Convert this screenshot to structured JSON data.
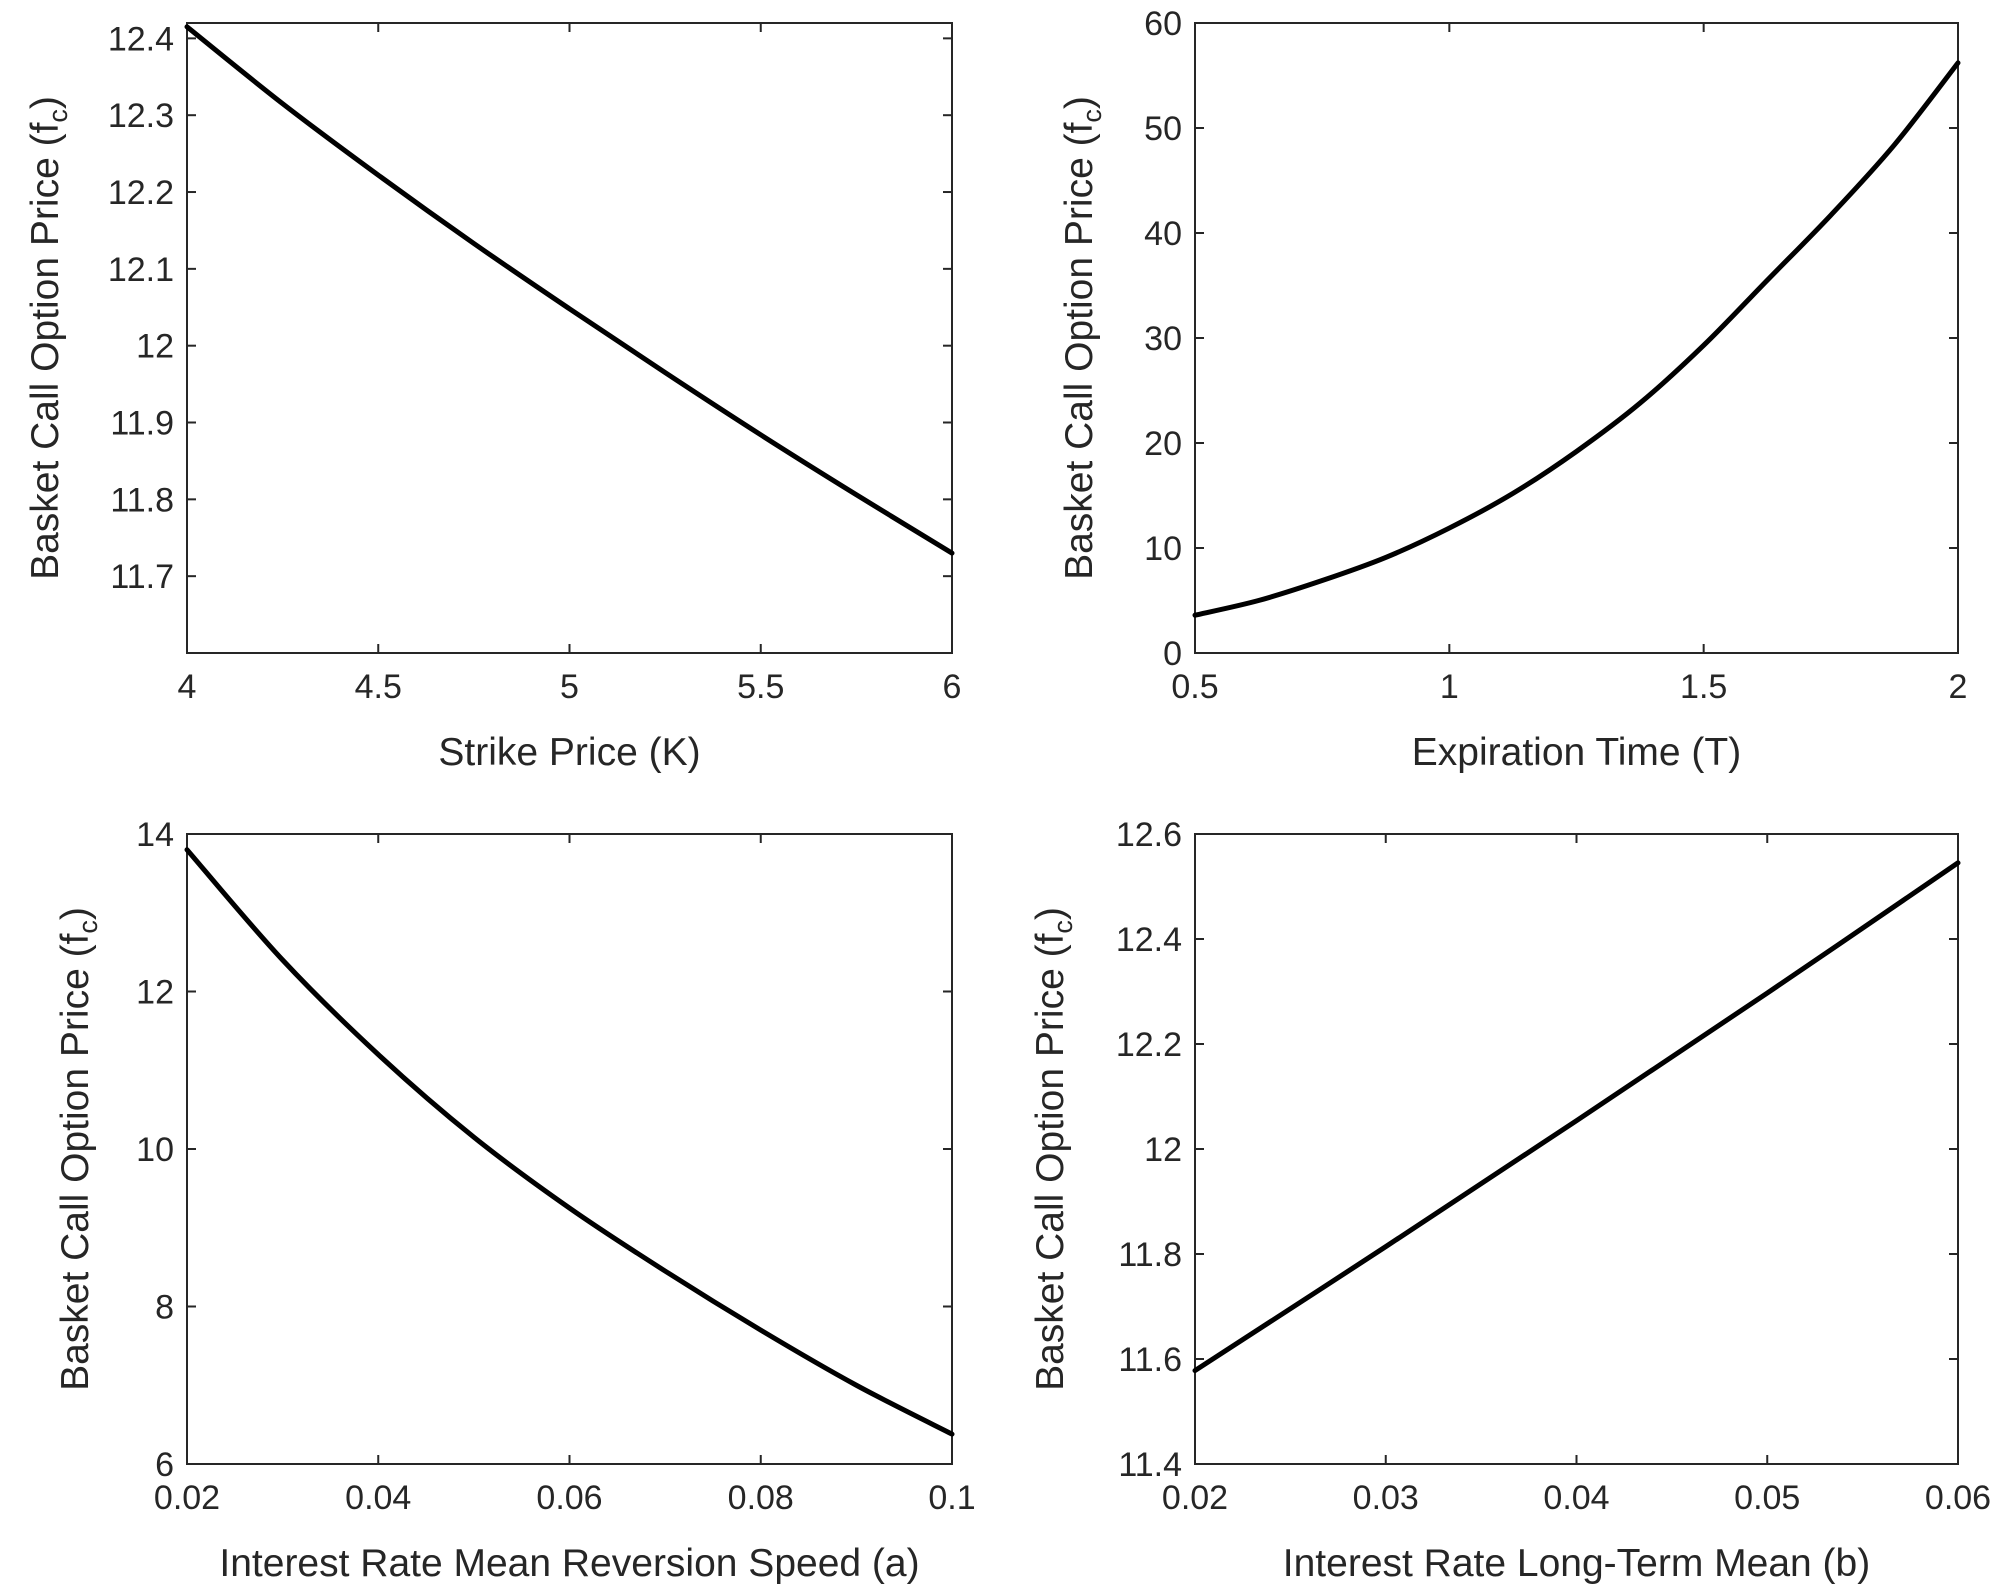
{
  "chart_data": [
    {
      "type": "line",
      "xlabel": "Strike Price (K)",
      "ylabel_main": "Basket Call Option Price (f",
      "ylabel_sub": "c",
      "ylabel_end": ")",
      "xlim": [
        4,
        6
      ],
      "ylim": [
        11.6,
        12.42
      ],
      "xticks": [
        4,
        4.5,
        5,
        5.5,
        6
      ],
      "xtick_labels": [
        "4",
        "4.5",
        "5",
        "5.5",
        "6"
      ],
      "yticks": [
        11.7,
        11.8,
        11.9,
        12,
        12.1,
        12.2,
        12.3,
        12.4
      ],
      "ytick_labels": [
        "11.7",
        "11.8",
        "11.9",
        "12",
        "12.1",
        "12.2",
        "12.3",
        "12.4"
      ],
      "series": [
        {
          "name": "Basket Call Option Price",
          "x": [
            4.0,
            4.25,
            4.5,
            4.75,
            5.0,
            5.25,
            5.5,
            5.75,
            6.0
          ],
          "y": [
            12.415,
            12.315,
            12.222,
            12.133,
            12.048,
            11.965,
            11.884,
            11.806,
            11.73
          ]
        }
      ]
    },
    {
      "type": "line",
      "xlabel": "Expiration Time (T)",
      "ylabel_main": "Basket Call Option Price (f",
      "ylabel_sub": "c",
      "ylabel_end": ")",
      "xlim": [
        0.5,
        2
      ],
      "ylim": [
        0,
        60
      ],
      "xticks": [
        0.5,
        1,
        1.5,
        2
      ],
      "xtick_labels": [
        "0.5",
        "1",
        "1.5",
        "2"
      ],
      "yticks": [
        0,
        10,
        20,
        30,
        40,
        50,
        60
      ],
      "ytick_labels": [
        "0",
        "10",
        "20",
        "30",
        "40",
        "50",
        "60"
      ],
      "series": [
        {
          "name": "Basket Call Option Price",
          "x": [
            0.5,
            0.625,
            0.75,
            0.875,
            1.0,
            1.125,
            1.25,
            1.375,
            1.5,
            1.625,
            1.75,
            1.875,
            2.0
          ],
          "y": [
            3.6,
            5.0,
            6.9,
            9.1,
            11.9,
            15.2,
            19.2,
            23.8,
            29.3,
            35.5,
            41.7,
            48.4,
            56.2
          ]
        }
      ]
    },
    {
      "type": "line",
      "xlabel": "Interest Rate Mean Reversion Speed (a)",
      "ylabel_main": "Basket Call Option Price (f",
      "ylabel_sub": "c",
      "ylabel_end": ")",
      "xlim": [
        0.02,
        0.1
      ],
      "ylim": [
        6,
        14
      ],
      "xticks": [
        0.02,
        0.04,
        0.06,
        0.08,
        0.1
      ],
      "xtick_labels": [
        "0.02",
        "0.04",
        "0.06",
        "0.08",
        "0.1"
      ],
      "yticks": [
        6,
        8,
        10,
        12,
        14
      ],
      "ytick_labels": [
        "6",
        "8",
        "10",
        "12",
        "14"
      ],
      "series": [
        {
          "name": "Basket Call Option Price",
          "x": [
            0.02,
            0.03,
            0.04,
            0.05,
            0.06,
            0.07,
            0.08,
            0.09,
            0.1
          ],
          "y": [
            13.8,
            12.4,
            11.2,
            10.15,
            9.25,
            8.45,
            7.7,
            7.0,
            6.38
          ]
        }
      ]
    },
    {
      "type": "line",
      "xlabel": "Interest Rate Long-Term Mean (b)",
      "ylabel_main": "Basket Call Option Price (f",
      "ylabel_sub": "c",
      "ylabel_end": ")",
      "xlim": [
        0.02,
        0.06
      ],
      "ylim": [
        11.4,
        12.6
      ],
      "xticks": [
        0.02,
        0.03,
        0.04,
        0.05,
        0.06
      ],
      "xtick_labels": [
        "0.02",
        "0.03",
        "0.04",
        "0.05",
        "0.06"
      ],
      "yticks": [
        11.4,
        11.6,
        11.8,
        12,
        12.2,
        12.4,
        12.6
      ],
      "ytick_labels": [
        "11.4",
        "11.6",
        "11.8",
        "12",
        "12.2",
        "12.4",
        "12.6"
      ],
      "series": [
        {
          "name": "Basket Call Option Price",
          "x": [
            0.02,
            0.03,
            0.04,
            0.05,
            0.06
          ],
          "y": [
            11.578,
            11.814,
            12.054,
            12.297,
            12.545
          ]
        }
      ]
    }
  ]
}
